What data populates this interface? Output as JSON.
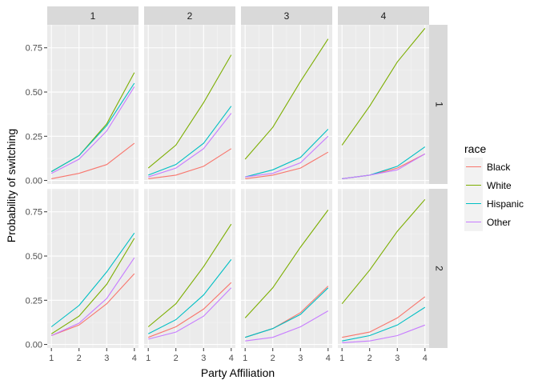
{
  "chart_data": {
    "type": "line",
    "xlabel": "Party Affiliation",
    "ylabel": "Probability of switching",
    "x": [
      1,
      2,
      3,
      4
    ],
    "x_ticks": [
      "1",
      "2",
      "3",
      "4"
    ],
    "ylim": [
      -0.02,
      0.88
    ],
    "y_ticks": [
      {
        "value": 0.0,
        "label": "0.00"
      },
      {
        "value": 0.25,
        "label": "0.25"
      },
      {
        "value": 0.5,
        "label": "0.50"
      },
      {
        "value": 0.75,
        "label": "0.75"
      }
    ],
    "grid": true,
    "facet_cols": [
      "1",
      "2",
      "3",
      "4"
    ],
    "facet_rows": [
      "1",
      "2"
    ],
    "legend": {
      "title": "race",
      "position": "right",
      "entries": [
        {
          "name": "Black",
          "color": "#F8766D"
        },
        {
          "name": "White",
          "color": "#7CAE00"
        },
        {
          "name": "Hispanic",
          "color": "#00BFC4"
        },
        {
          "name": "Other",
          "color": "#C77CFF"
        }
      ]
    },
    "panels": [
      {
        "col": "1",
        "row": "1",
        "series": [
          {
            "name": "Black",
            "values": [
              0.01,
              0.04,
              0.09,
              0.21
            ]
          },
          {
            "name": "White",
            "values": [
              0.05,
              0.14,
              0.32,
              0.61
            ]
          },
          {
            "name": "Hispanic",
            "values": [
              0.05,
              0.14,
              0.31,
              0.55
            ]
          },
          {
            "name": "Other",
            "values": [
              0.04,
              0.12,
              0.28,
              0.53
            ]
          }
        ]
      },
      {
        "col": "2",
        "row": "1",
        "series": [
          {
            "name": "Black",
            "values": [
              0.01,
              0.03,
              0.08,
              0.18
            ]
          },
          {
            "name": "White",
            "values": [
              0.07,
              0.2,
              0.44,
              0.71
            ]
          },
          {
            "name": "Hispanic",
            "values": [
              0.03,
              0.09,
              0.21,
              0.42
            ]
          },
          {
            "name": "Other",
            "values": [
              0.02,
              0.07,
              0.18,
              0.38
            ]
          }
        ]
      },
      {
        "col": "3",
        "row": "1",
        "series": [
          {
            "name": "Black",
            "values": [
              0.01,
              0.03,
              0.07,
              0.16
            ]
          },
          {
            "name": "White",
            "values": [
              0.12,
              0.3,
              0.56,
              0.8
            ]
          },
          {
            "name": "Hispanic",
            "values": [
              0.02,
              0.06,
              0.13,
              0.29
            ]
          },
          {
            "name": "Other",
            "values": [
              0.02,
              0.04,
              0.1,
              0.25
            ]
          }
        ]
      },
      {
        "col": "4",
        "row": "1",
        "series": [
          {
            "name": "Black",
            "values": [
              0.01,
              0.03,
              0.07,
              0.15
            ]
          },
          {
            "name": "White",
            "values": [
              0.2,
              0.42,
              0.67,
              0.86
            ]
          },
          {
            "name": "Hispanic",
            "values": [
              0.01,
              0.03,
              0.08,
              0.19
            ]
          },
          {
            "name": "Other",
            "values": [
              0.01,
              0.03,
              0.06,
              0.15
            ]
          }
        ]
      },
      {
        "col": "1",
        "row": "2",
        "series": [
          {
            "name": "Black",
            "values": [
              0.05,
              0.11,
              0.23,
              0.4
            ]
          },
          {
            "name": "White",
            "values": [
              0.06,
              0.16,
              0.34,
              0.6
            ]
          },
          {
            "name": "Hispanic",
            "values": [
              0.1,
              0.22,
              0.41,
              0.63
            ]
          },
          {
            "name": "Other",
            "values": [
              0.05,
              0.12,
              0.26,
              0.49
            ]
          }
        ]
      },
      {
        "col": "2",
        "row": "2",
        "series": [
          {
            "name": "Black",
            "values": [
              0.04,
              0.1,
              0.2,
              0.35
            ]
          },
          {
            "name": "White",
            "values": [
              0.1,
              0.23,
              0.44,
              0.68
            ]
          },
          {
            "name": "Hispanic",
            "values": [
              0.06,
              0.14,
              0.28,
              0.48
            ]
          },
          {
            "name": "Other",
            "values": [
              0.03,
              0.07,
              0.16,
              0.32
            ]
          }
        ]
      },
      {
        "col": "3",
        "row": "2",
        "series": [
          {
            "name": "Black",
            "values": [
              0.04,
              0.09,
              0.18,
              0.33
            ]
          },
          {
            "name": "White",
            "values": [
              0.15,
              0.32,
              0.55,
              0.76
            ]
          },
          {
            "name": "Hispanic",
            "values": [
              0.04,
              0.09,
              0.17,
              0.32
            ]
          },
          {
            "name": "Other",
            "values": [
              0.02,
              0.04,
              0.1,
              0.19
            ]
          }
        ]
      },
      {
        "col": "4",
        "row": "2",
        "series": [
          {
            "name": "Black",
            "values": [
              0.04,
              0.07,
              0.15,
              0.27
            ]
          },
          {
            "name": "White",
            "values": [
              0.23,
              0.42,
              0.64,
              0.82
            ]
          },
          {
            "name": "Hispanic",
            "values": [
              0.02,
              0.05,
              0.11,
              0.21
            ]
          },
          {
            "name": "Other",
            "values": [
              0.01,
              0.02,
              0.05,
              0.11
            ]
          }
        ]
      }
    ]
  }
}
